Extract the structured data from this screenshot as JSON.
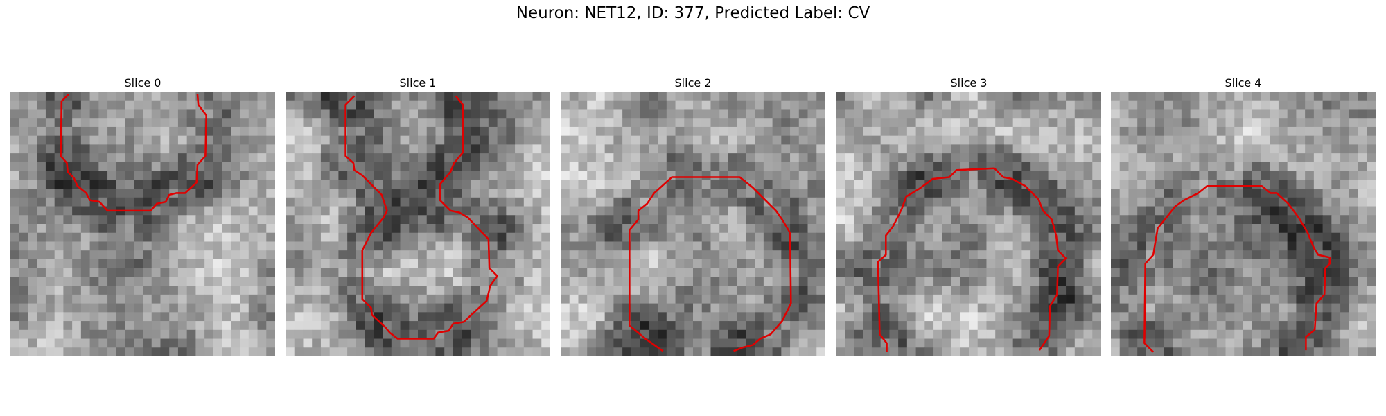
{
  "title": "Neuron: NET12, ID: 377, Predicted Label: CV",
  "panels": [
    {
      "title": "Slice 0"
    },
    {
      "title": "Slice 1"
    },
    {
      "title": "Slice 2"
    },
    {
      "title": "Slice 3"
    },
    {
      "title": "Slice 4"
    }
  ]
}
